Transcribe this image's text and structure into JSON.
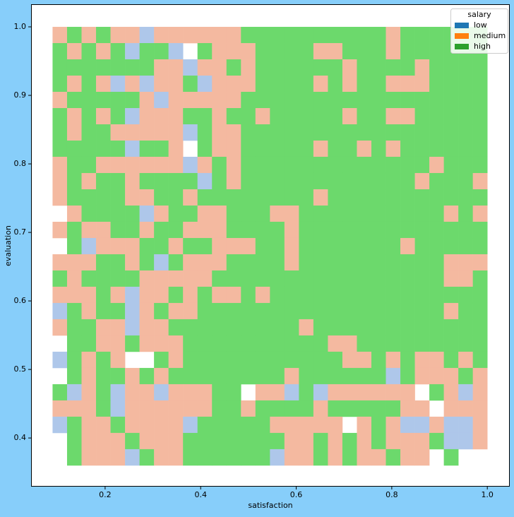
{
  "chart_data": {
    "type": "heatmap",
    "x_label": "satisfaction",
    "y_label": "evaluation",
    "xlim": [
      0.045,
      1.047
    ],
    "ylim": [
      0.329,
      1.033
    ],
    "xticks": [
      0.2,
      0.4,
      0.6,
      0.8,
      {
        "value": 1,
        "label": "1.0"
      }
    ],
    "yticks": [
      0.4,
      0.5,
      0.6,
      0.7,
      0.8,
      0.9,
      {
        "value": 1,
        "label": "1.0"
      }
    ],
    "xbin_range": [
      0.09,
      1.0
    ],
    "ybin_range": [
      0.36,
      1.0
    ],
    "legend_title": "salary",
    "legend_position": "upper right",
    "series": [
      {
        "name": "low",
        "color": "#1f77b4"
      },
      {
        "name": "medium",
        "color": "#ff7f0e"
      },
      {
        "name": "high",
        "color": "#2ca02c"
      }
    ],
    "cell_colors": [
      "#aec7ea",
      "#f4b9a0",
      "#6cd96c"
    ],
    "z": [
      [
        1,
        2,
        1,
        2,
        1,
        1,
        0,
        1,
        1,
        1,
        1,
        1,
        1,
        2,
        2,
        2,
        2,
        2,
        2,
        2,
        2,
        2,
        2,
        1,
        2,
        2,
        2,
        2,
        2,
        2
      ],
      [
        2,
        1,
        2,
        1,
        2,
        0,
        2,
        2,
        0,
        null,
        2,
        1,
        1,
        1,
        2,
        2,
        2,
        2,
        1,
        1,
        2,
        2,
        2,
        1,
        2,
        2,
        2,
        2,
        2,
        2
      ],
      [
        2,
        2,
        2,
        2,
        2,
        2,
        2,
        1,
        1,
        0,
        1,
        1,
        2,
        1,
        2,
        2,
        2,
        2,
        2,
        2,
        1,
        2,
        2,
        2,
        2,
        1,
        2,
        2,
        2,
        2
      ],
      [
        2,
        1,
        2,
        1,
        0,
        1,
        0,
        1,
        1,
        2,
        0,
        1,
        1,
        1,
        2,
        2,
        2,
        2,
        1,
        2,
        1,
        2,
        2,
        1,
        1,
        1,
        2,
        2,
        2,
        2
      ],
      [
        1,
        2,
        2,
        2,
        2,
        2,
        1,
        0,
        1,
        1,
        1,
        1,
        1,
        2,
        2,
        2,
        2,
        2,
        2,
        2,
        2,
        2,
        2,
        2,
        2,
        2,
        2,
        2,
        2,
        2
      ],
      [
        2,
        1,
        2,
        1,
        2,
        0,
        1,
        1,
        1,
        2,
        2,
        1,
        2,
        2,
        1,
        2,
        2,
        2,
        2,
        2,
        1,
        2,
        2,
        1,
        1,
        2,
        2,
        2,
        2,
        2
      ],
      [
        2,
        1,
        2,
        2,
        1,
        1,
        1,
        1,
        1,
        0,
        2,
        1,
        1,
        2,
        2,
        2,
        2,
        2,
        2,
        2,
        2,
        2,
        2,
        2,
        2,
        2,
        2,
        2,
        2,
        2
      ],
      [
        2,
        2,
        2,
        2,
        2,
        0,
        2,
        2,
        1,
        null,
        2,
        1,
        1,
        2,
        2,
        2,
        2,
        2,
        1,
        2,
        2,
        1,
        2,
        1,
        2,
        2,
        2,
        2,
        2,
        2
      ],
      [
        1,
        2,
        2,
        1,
        1,
        1,
        1,
        1,
        1,
        0,
        1,
        2,
        1,
        2,
        2,
        2,
        2,
        2,
        2,
        2,
        2,
        2,
        2,
        2,
        2,
        2,
        1,
        2,
        2,
        2
      ],
      [
        1,
        2,
        1,
        2,
        2,
        1,
        2,
        2,
        2,
        2,
        0,
        2,
        1,
        2,
        2,
        2,
        2,
        2,
        2,
        2,
        2,
        2,
        2,
        2,
        2,
        1,
        2,
        2,
        2,
        1
      ],
      [
        1,
        2,
        2,
        2,
        2,
        1,
        1,
        2,
        2,
        1,
        2,
        2,
        2,
        2,
        2,
        2,
        2,
        2,
        1,
        2,
        2,
        2,
        2,
        2,
        2,
        2,
        2,
        2,
        2,
        2
      ],
      [
        null,
        1,
        2,
        2,
        2,
        2,
        0,
        1,
        2,
        2,
        1,
        1,
        2,
        2,
        2,
        1,
        1,
        2,
        2,
        2,
        2,
        2,
        2,
        2,
        2,
        2,
        2,
        1,
        2,
        1
      ],
      [
        1,
        2,
        1,
        1,
        2,
        2,
        1,
        2,
        2,
        1,
        1,
        1,
        2,
        2,
        2,
        2,
        1,
        2,
        2,
        2,
        2,
        2,
        2,
        2,
        2,
        2,
        2,
        2,
        2,
        2
      ],
      [
        null,
        2,
        0,
        1,
        1,
        1,
        2,
        2,
        1,
        2,
        2,
        1,
        1,
        1,
        2,
        2,
        1,
        2,
        2,
        2,
        2,
        2,
        2,
        2,
        1,
        2,
        2,
        2,
        2,
        2
      ],
      [
        1,
        1,
        1,
        2,
        2,
        1,
        2,
        0,
        2,
        1,
        1,
        1,
        2,
        2,
        2,
        2,
        1,
        2,
        2,
        2,
        2,
        2,
        2,
        2,
        2,
        2,
        2,
        1,
        1,
        1
      ],
      [
        2,
        1,
        2,
        2,
        2,
        2,
        1,
        1,
        1,
        1,
        1,
        2,
        2,
        2,
        2,
        2,
        2,
        2,
        2,
        2,
        2,
        2,
        2,
        2,
        2,
        2,
        2,
        1,
        1,
        2
      ],
      [
        1,
        1,
        1,
        2,
        1,
        0,
        1,
        1,
        2,
        1,
        2,
        1,
        1,
        2,
        1,
        2,
        2,
        2,
        2,
        2,
        2,
        2,
        2,
        2,
        2,
        2,
        2,
        2,
        2,
        2
      ],
      [
        0,
        2,
        1,
        2,
        2,
        0,
        1,
        2,
        1,
        1,
        2,
        2,
        2,
        2,
        2,
        2,
        2,
        2,
        2,
        2,
        2,
        2,
        2,
        2,
        2,
        2,
        2,
        1,
        2,
        2
      ],
      [
        1,
        2,
        2,
        1,
        1,
        0,
        1,
        1,
        2,
        2,
        2,
        2,
        2,
        2,
        2,
        2,
        2,
        1,
        2,
        2,
        2,
        2,
        2,
        2,
        2,
        2,
        2,
        2,
        2,
        2
      ],
      [
        null,
        2,
        2,
        1,
        1,
        2,
        1,
        1,
        1,
        2,
        2,
        2,
        2,
        2,
        2,
        2,
        2,
        2,
        2,
        1,
        1,
        2,
        2,
        2,
        2,
        2,
        2,
        2,
        2,
        2
      ],
      [
        0,
        2,
        1,
        2,
        1,
        null,
        null,
        2,
        1,
        2,
        2,
        2,
        2,
        2,
        2,
        2,
        2,
        2,
        2,
        2,
        1,
        1,
        2,
        1,
        2,
        1,
        1,
        2,
        1,
        2
      ],
      [
        null,
        2,
        1,
        2,
        2,
        1,
        2,
        1,
        2,
        2,
        2,
        2,
        2,
        2,
        2,
        2,
        1,
        2,
        2,
        2,
        2,
        2,
        2,
        0,
        2,
        1,
        1,
        1,
        2,
        1
      ],
      [
        2,
        0,
        1,
        2,
        0,
        1,
        1,
        0,
        1,
        1,
        1,
        2,
        2,
        null,
        1,
        1,
        0,
        2,
        0,
        1,
        1,
        1,
        1,
        1,
        1,
        null,
        2,
        1,
        0,
        1
      ],
      [
        1,
        1,
        1,
        2,
        0,
        1,
        1,
        1,
        1,
        1,
        1,
        2,
        2,
        1,
        2,
        2,
        2,
        2,
        1,
        2,
        2,
        2,
        2,
        2,
        1,
        1,
        null,
        1,
        1,
        1
      ],
      [
        0,
        2,
        1,
        1,
        2,
        1,
        1,
        1,
        1,
        0,
        2,
        2,
        2,
        2,
        2,
        1,
        1,
        1,
        1,
        1,
        null,
        1,
        2,
        1,
        0,
        0,
        1,
        0,
        0,
        1
      ],
      [
        null,
        2,
        1,
        1,
        1,
        2,
        1,
        1,
        1,
        2,
        2,
        2,
        2,
        2,
        2,
        2,
        1,
        1,
        2,
        1,
        2,
        1,
        2,
        1,
        1,
        1,
        2,
        0,
        0,
        1
      ],
      [
        null,
        2,
        1,
        1,
        1,
        0,
        2,
        1,
        1,
        2,
        2,
        2,
        2,
        2,
        2,
        0,
        1,
        1,
        2,
        1,
        2,
        1,
        1,
        2,
        1,
        1,
        null,
        2,
        null,
        null
      ]
    ]
  }
}
